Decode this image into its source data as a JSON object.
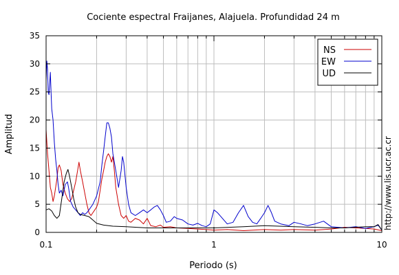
{
  "chart_data": {
    "type": "line",
    "title": "Cociente espectral Fraijanes, Alajuela. Profundidad 24 m",
    "xlabel": "Periodo (s)",
    "ylabel": "Amplitud",
    "xscale": "log",
    "xlim": [
      0.1,
      10
    ],
    "ylim": [
      0,
      35
    ],
    "x_ticks": [
      0.1,
      1,
      10
    ],
    "x_tick_labels": [
      "0.1",
      "1",
      "10"
    ],
    "y_ticks": [
      0,
      5,
      10,
      15,
      20,
      25,
      30,
      35
    ],
    "y_tick_labels": [
      "0",
      "5",
      "10",
      "15",
      "20",
      "25",
      "30",
      "35"
    ],
    "grid": true,
    "legend_position": "top-right",
    "credit": "http://www.lis.ucr.ac.cr",
    "series": [
      {
        "name": "NS",
        "color": "#cc0000",
        "points": [
          [
            0.1,
            18.3
          ],
          [
            0.102,
            14
          ],
          [
            0.104,
            11
          ],
          [
            0.106,
            8
          ],
          [
            0.108,
            7
          ],
          [
            0.11,
            5.5
          ],
          [
            0.112,
            6.5
          ],
          [
            0.114,
            8
          ],
          [
            0.116,
            9.5
          ],
          [
            0.118,
            11.5
          ],
          [
            0.12,
            12
          ],
          [
            0.123,
            11
          ],
          [
            0.126,
            8.5
          ],
          [
            0.13,
            7
          ],
          [
            0.134,
            6
          ],
          [
            0.138,
            5.5
          ],
          [
            0.142,
            6
          ],
          [
            0.146,
            7.5
          ],
          [
            0.15,
            9
          ],
          [
            0.154,
            11
          ],
          [
            0.157,
            12.5
          ],
          [
            0.16,
            11
          ],
          [
            0.165,
            9
          ],
          [
            0.17,
            7
          ],
          [
            0.175,
            5
          ],
          [
            0.18,
            3.5
          ],
          [
            0.185,
            3
          ],
          [
            0.19,
            3.5
          ],
          [
            0.195,
            4
          ],
          [
            0.2,
            4.5
          ],
          [
            0.205,
            5.5
          ],
          [
            0.21,
            7.5
          ],
          [
            0.215,
            9.5
          ],
          [
            0.22,
            11
          ],
          [
            0.225,
            12.5
          ],
          [
            0.23,
            13.5
          ],
          [
            0.235,
            14
          ],
          [
            0.24,
            13.5
          ],
          [
            0.245,
            12.5
          ],
          [
            0.25,
            13.5
          ],
          [
            0.255,
            11
          ],
          [
            0.26,
            8
          ],
          [
            0.27,
            5
          ],
          [
            0.28,
            3
          ],
          [
            0.29,
            2.5
          ],
          [
            0.3,
            3
          ],
          [
            0.31,
            2
          ],
          [
            0.32,
            1.8
          ],
          [
            0.34,
            2.5
          ],
          [
            0.36,
            2.2
          ],
          [
            0.38,
            1.5
          ],
          [
            0.4,
            2.5
          ],
          [
            0.42,
            1.2
          ],
          [
            0.45,
            1
          ],
          [
            0.48,
            1.3
          ],
          [
            0.5,
            0.9
          ],
          [
            0.55,
            1
          ],
          [
            0.6,
            0.8
          ],
          [
            0.7,
            0.7
          ],
          [
            0.8,
            0.6
          ],
          [
            0.9,
            0.5
          ],
          [
            1,
            0.4
          ],
          [
            1.2,
            0.5
          ],
          [
            1.5,
            0.3
          ],
          [
            2,
            0.5
          ],
          [
            2.5,
            0.4
          ],
          [
            3,
            0.5
          ],
          [
            4,
            0.4
          ],
          [
            5,
            0.6
          ],
          [
            6,
            0.9
          ],
          [
            7,
            0.8
          ],
          [
            8,
            0.7
          ],
          [
            9,
            0.6
          ],
          [
            10,
            0.3
          ]
        ]
      },
      {
        "name": "EW",
        "color": "#0000cc",
        "points": [
          [
            0.1,
            27
          ],
          [
            0.101,
            30.5
          ],
          [
            0.102,
            29
          ],
          [
            0.103,
            25
          ],
          [
            0.104,
            24.5
          ],
          [
            0.105,
            26.5
          ],
          [
            0.106,
            28.5
          ],
          [
            0.107,
            25
          ],
          [
            0.108,
            22
          ],
          [
            0.11,
            20
          ],
          [
            0.112,
            16
          ],
          [
            0.114,
            13
          ],
          [
            0.116,
            11
          ],
          [
            0.118,
            8.5
          ],
          [
            0.12,
            7
          ],
          [
            0.123,
            7.5
          ],
          [
            0.126,
            6.5
          ],
          [
            0.13,
            8.5
          ],
          [
            0.134,
            9
          ],
          [
            0.136,
            8
          ],
          [
            0.14,
            5.5
          ],
          [
            0.145,
            4.5
          ],
          [
            0.15,
            4
          ],
          [
            0.155,
            3.5
          ],
          [
            0.16,
            3
          ],
          [
            0.165,
            3.5
          ],
          [
            0.17,
            3.2
          ],
          [
            0.175,
            3.5
          ],
          [
            0.18,
            4
          ],
          [
            0.19,
            5
          ],
          [
            0.2,
            6.5
          ],
          [
            0.21,
            9
          ],
          [
            0.215,
            12
          ],
          [
            0.22,
            14.5
          ],
          [
            0.225,
            17
          ],
          [
            0.23,
            19.5
          ],
          [
            0.235,
            19.5
          ],
          [
            0.24,
            18.5
          ],
          [
            0.245,
            17
          ],
          [
            0.25,
            14
          ],
          [
            0.26,
            11
          ],
          [
            0.27,
            8
          ],
          [
            0.28,
            11
          ],
          [
            0.285,
            13.5
          ],
          [
            0.29,
            12.5
          ],
          [
            0.3,
            8
          ],
          [
            0.31,
            5
          ],
          [
            0.32,
            3.5
          ],
          [
            0.34,
            3
          ],
          [
            0.36,
            3.5
          ],
          [
            0.38,
            4
          ],
          [
            0.4,
            3.5
          ],
          [
            0.42,
            4
          ],
          [
            0.44,
            4.5
          ],
          [
            0.46,
            4.8
          ],
          [
            0.48,
            4
          ],
          [
            0.5,
            3
          ],
          [
            0.52,
            1.8
          ],
          [
            0.55,
            2
          ],
          [
            0.58,
            2.8
          ],
          [
            0.6,
            2.5
          ],
          [
            0.65,
            2.2
          ],
          [
            0.7,
            1.5
          ],
          [
            0.75,
            1.3
          ],
          [
            0.8,
            1.6
          ],
          [
            0.85,
            1.2
          ],
          [
            0.9,
            1
          ],
          [
            0.95,
            1.5
          ],
          [
            1,
            4
          ],
          [
            1.05,
            3.5
          ],
          [
            1.1,
            2.8
          ],
          [
            1.2,
            1.5
          ],
          [
            1.3,
            1.8
          ],
          [
            1.4,
            3.5
          ],
          [
            1.5,
            4.8
          ],
          [
            1.55,
            3.8
          ],
          [
            1.6,
            2.8
          ],
          [
            1.7,
            1.8
          ],
          [
            1.8,
            1.5
          ],
          [
            1.9,
            2.5
          ],
          [
            2,
            3.5
          ],
          [
            2.1,
            4.8
          ],
          [
            2.2,
            3.5
          ],
          [
            2.3,
            2
          ],
          [
            2.5,
            1.5
          ],
          [
            2.8,
            1.2
          ],
          [
            3,
            1.8
          ],
          [
            3.3,
            1.5
          ],
          [
            3.6,
            1.2
          ],
          [
            4,
            1.5
          ],
          [
            4.5,
            2
          ],
          [
            5,
            1
          ],
          [
            6,
            0.8
          ],
          [
            7,
            1
          ],
          [
            8,
            0.7
          ],
          [
            9,
            1
          ],
          [
            9.5,
            1.3
          ],
          [
            10,
            0.4
          ]
        ]
      },
      {
        "name": "UD",
        "color": "#000000",
        "points": [
          [
            0.1,
            4
          ],
          [
            0.104,
            4.2
          ],
          [
            0.108,
            3.8
          ],
          [
            0.112,
            3
          ],
          [
            0.116,
            2.5
          ],
          [
            0.12,
            3
          ],
          [
            0.124,
            6
          ],
          [
            0.128,
            9
          ],
          [
            0.132,
            10.5
          ],
          [
            0.135,
            11.2
          ],
          [
            0.138,
            10
          ],
          [
            0.142,
            8
          ],
          [
            0.146,
            6
          ],
          [
            0.15,
            4.5
          ],
          [
            0.155,
            3.5
          ],
          [
            0.16,
            3.2
          ],
          [
            0.17,
            3
          ],
          [
            0.18,
            2.8
          ],
          [
            0.19,
            2.2
          ],
          [
            0.2,
            1.6
          ],
          [
            0.22,
            1.3
          ],
          [
            0.25,
            1.1
          ],
          [
            0.3,
            1
          ],
          [
            0.4,
            0.8
          ],
          [
            0.5,
            0.8
          ],
          [
            0.7,
            0.8
          ],
          [
            1,
            0.8
          ],
          [
            1.5,
            1
          ],
          [
            2,
            1.2
          ],
          [
            3,
            1
          ],
          [
            4,
            0.9
          ],
          [
            5,
            0.8
          ],
          [
            6,
            0.8
          ],
          [
            7,
            0.9
          ],
          [
            8,
            1
          ],
          [
            9,
            1
          ],
          [
            9.5,
            1.4
          ],
          [
            10,
            0.4
          ]
        ]
      }
    ]
  }
}
